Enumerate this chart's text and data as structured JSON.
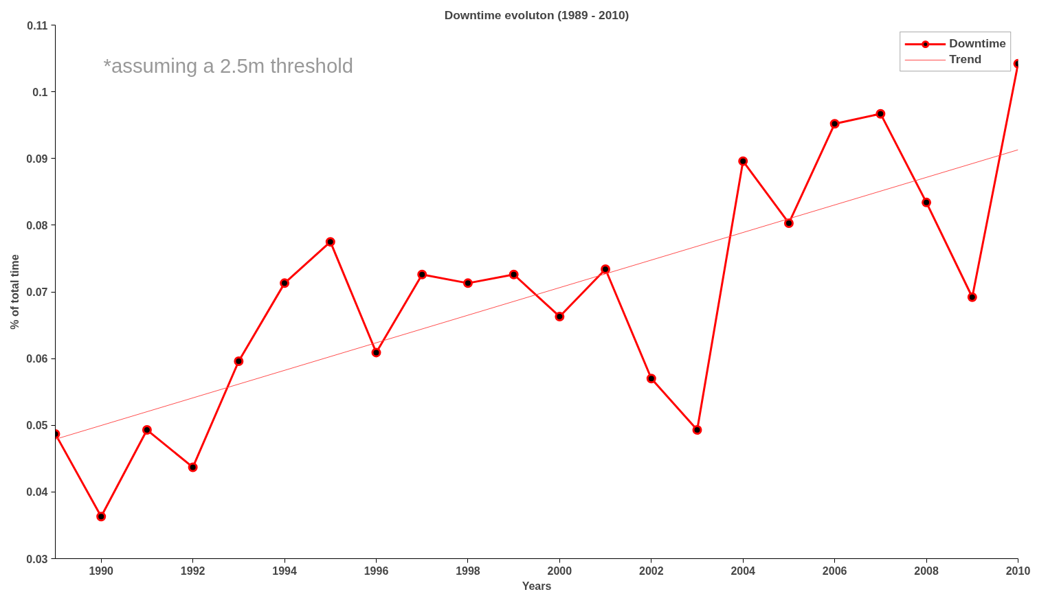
{
  "chart_data": {
    "type": "line",
    "title": "Downtime evoluton (1989 - 2010)",
    "xlabel": "Years",
    "ylabel": "% of total time",
    "x": [
      1989,
      1990,
      1991,
      1992,
      1993,
      1994,
      1995,
      1996,
      1997,
      1998,
      1999,
      2000,
      2001,
      2002,
      2003,
      2004,
      2005,
      2006,
      2007,
      2008,
      2009,
      2010
    ],
    "series": [
      {
        "name": "Downtime",
        "color": "#ff0000",
        "marker": "circle",
        "values": [
          0.0487,
          0.0363,
          0.0493,
          0.0437,
          0.0596,
          0.0713,
          0.0775,
          0.0609,
          0.0726,
          0.0713,
          0.0726,
          0.0663,
          0.0734,
          0.057,
          0.0493,
          0.0896,
          0.0803,
          0.0952,
          0.0967,
          0.0834,
          0.0692,
          0.1042
        ]
      },
      {
        "name": "Trend",
        "color": "#ff4d4d",
        "marker": "none",
        "x": [
          1989,
          2010
        ],
        "values": [
          0.0479,
          0.0913
        ]
      }
    ],
    "xlim": [
      1989,
      2010
    ],
    "xticks": [
      1990,
      1992,
      1994,
      1996,
      1998,
      2000,
      2002,
      2004,
      2006,
      2008,
      2010
    ],
    "ylim": [
      0.03,
      0.11
    ],
    "yticks": [
      0.03,
      0.04,
      0.05,
      0.06,
      0.07,
      0.08,
      0.09,
      0.1,
      0.11
    ],
    "grid": false,
    "legend": "top right",
    "annotations": [
      "*assuming a 2.5m threshold"
    ]
  }
}
